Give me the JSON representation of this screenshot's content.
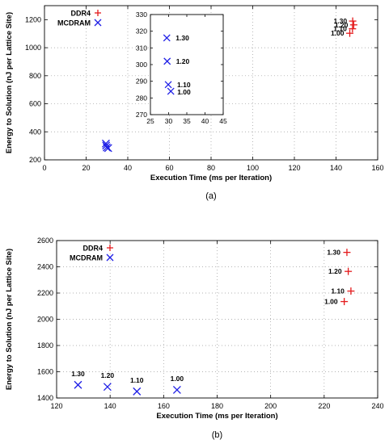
{
  "colors": {
    "ddr4": "#e41a1c",
    "mcdram": "#1f1fe6",
    "grid": "#9a9a9a",
    "axis": "#000000",
    "text": "#000000"
  },
  "chart_data": [
    {
      "type": "scatter",
      "caption": "(a)",
      "xlabel": "Execution Time (ms per Iteration)",
      "ylabel": "Energy to Solution (nJ per Lattice Site)",
      "xlim": [
        0,
        160
      ],
      "ylim": [
        200,
        1300
      ],
      "xticks": [
        "0",
        "20",
        "40",
        "60",
        "80",
        "100",
        "120",
        "140",
        "160"
      ],
      "yticks": [
        "200",
        "400",
        "600",
        "800",
        "1000",
        "1200"
      ],
      "grid": true,
      "legend": {
        "position": "top-left",
        "entries": [
          {
            "label": "DDR4",
            "marker": "plus"
          },
          {
            "label": "MCDRAM",
            "marker": "cross"
          }
        ]
      },
      "series": [
        {
          "name": "DDR4",
          "marker": "plus",
          "points": [
            {
              "x": 148.0,
              "y": 1190,
              "label": "1.30"
            },
            {
              "x": 148.5,
              "y": 1163,
              "label": "1.20"
            },
            {
              "x": 147.9,
              "y": 1135,
              "label": "1.10"
            },
            {
              "x": 146.6,
              "y": 1103,
              "label": "1.00"
            }
          ]
        },
        {
          "name": "MCDRAM",
          "marker": "cross",
          "points": [
            {
              "x": 29.5,
              "y": 316,
              "label": "1.30"
            },
            {
              "x": 29.6,
              "y": 302,
              "label": "1.20"
            },
            {
              "x": 29.9,
              "y": 288,
              "label": "1.10"
            },
            {
              "x": 30.6,
              "y": 284,
              "label": "1.00"
            }
          ]
        }
      ],
      "inset": {
        "xlim": [
          25,
          45
        ],
        "ylim": [
          270,
          330
        ],
        "xticks": [
          "25",
          "30",
          "35",
          "40",
          "45"
        ],
        "yticks": [
          "270",
          "280",
          "290",
          "300",
          "310",
          "320",
          "330"
        ],
        "series": "MCDRAM"
      }
    },
    {
      "type": "scatter",
      "caption": "(b)",
      "xlabel": "Execution Time (ms per Iteration)",
      "ylabel": "Energy to Solution (nJ per Lattice Site)",
      "xlim": [
        120,
        240
      ],
      "ylim": [
        1400,
        2600
      ],
      "xticks": [
        "120",
        "140",
        "160",
        "180",
        "200",
        "220",
        "240"
      ],
      "yticks": [
        "1400",
        "1600",
        "1800",
        "2000",
        "2200",
        "2400",
        "2600"
      ],
      "grid": true,
      "legend": {
        "position": "top-left",
        "entries": [
          {
            "label": "DDR4",
            "marker": "plus"
          },
          {
            "label": "MCDRAM",
            "marker": "cross"
          }
        ]
      },
      "series": [
        {
          "name": "DDR4",
          "marker": "plus",
          "points": [
            {
              "x": 228.5,
              "y": 2510,
              "label": "1.30"
            },
            {
              "x": 229.0,
              "y": 2365,
              "label": "1.20"
            },
            {
              "x": 230.0,
              "y": 2215,
              "label": "1.10"
            },
            {
              "x": 227.5,
              "y": 2135,
              "label": "1.00"
            }
          ]
        },
        {
          "name": "MCDRAM",
          "marker": "cross",
          "points": [
            {
              "x": 128.0,
              "y": 1500,
              "label": "1.30"
            },
            {
              "x": 139.0,
              "y": 1485,
              "label": "1.20"
            },
            {
              "x": 150.0,
              "y": 1450,
              "label": "1.10"
            },
            {
              "x": 165.0,
              "y": 1462,
              "label": "1.00"
            }
          ]
        }
      ]
    }
  ]
}
